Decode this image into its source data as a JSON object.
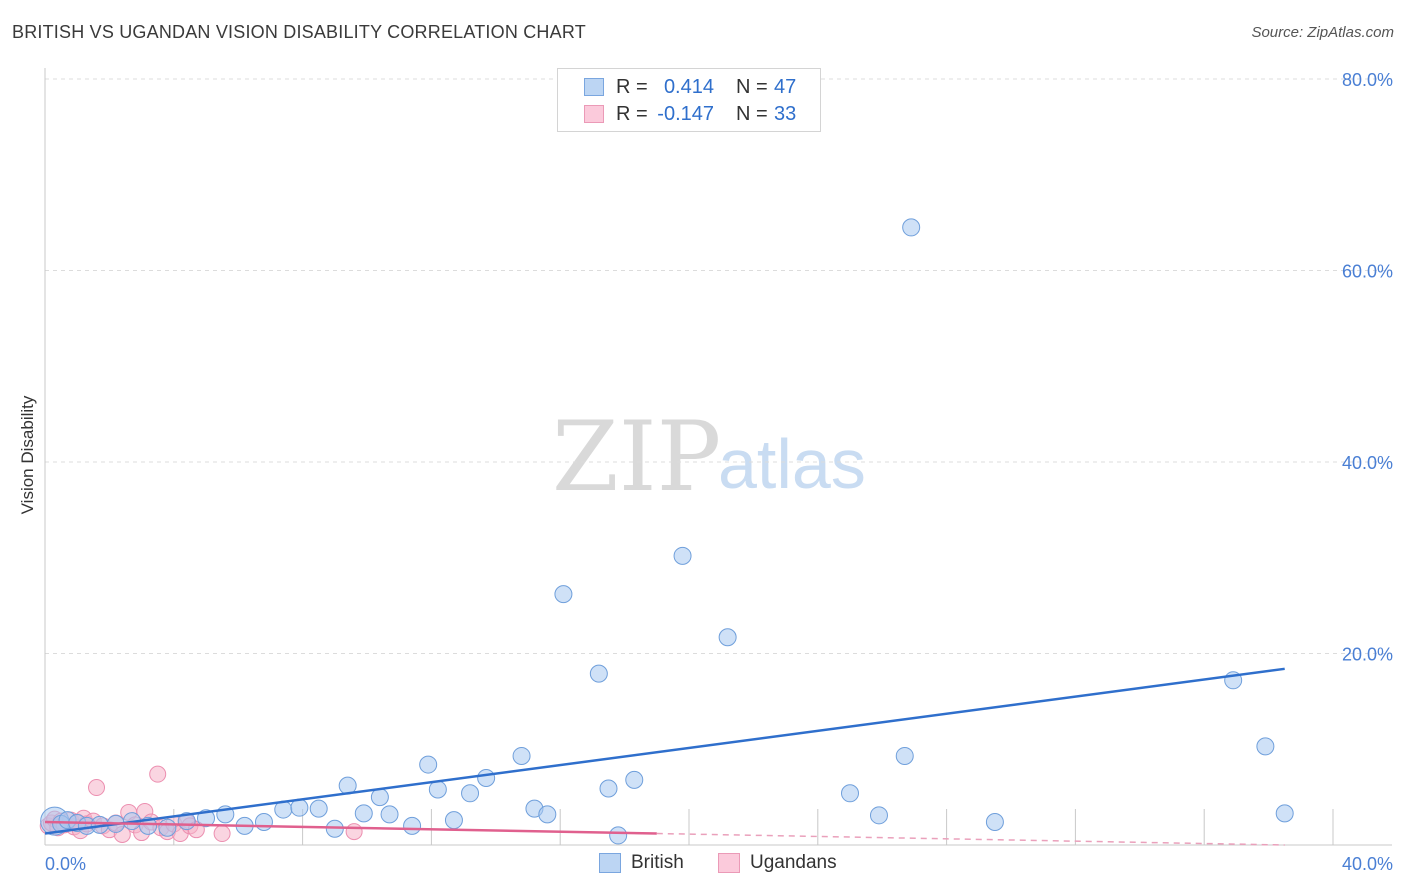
{
  "title": "BRITISH VS UGANDAN VISION DISABILITY CORRELATION CHART",
  "source": "Source: ZipAtlas.com",
  "watermark": {
    "zip": "ZIP",
    "atlas": "atlas"
  },
  "colors": {
    "british": "#a8c8f0",
    "british_line": "#2f6fcc",
    "ugandans": "#f5b3c8",
    "ugandans_line": "#e0608e"
  },
  "legend": {
    "r_label": "R =",
    "n_label": "N =",
    "british": {
      "r": "0.414",
      "n": "47"
    },
    "ugandans": {
      "r": "-0.147",
      "n": "33"
    }
  },
  "bottom_legend": {
    "british": "British",
    "ugandans": "Ugandans"
  },
  "chart_data": {
    "type": "scatter",
    "title": "BRITISH VS UGANDAN VISION DISABILITY CORRELATION CHART",
    "xlabel": "",
    "ylabel": "Vision Disability",
    "xlim": [
      0,
      40
    ],
    "ylim": [
      0,
      80
    ],
    "x_tick_labels": [
      "0.0%",
      "40.0%"
    ],
    "y_ticks": [
      20,
      40,
      60,
      80
    ],
    "y_tick_labels": [
      "20.0%",
      "40.0%",
      "60.0%",
      "80.0%"
    ],
    "grid": true,
    "series": [
      {
        "name": "British",
        "r": 0.414,
        "n": 47,
        "trend": {
          "x": [
            0,
            38.5
          ],
          "y": [
            1.2,
            18.4
          ]
        },
        "points": [
          {
            "x": 0.3,
            "y": 2.5,
            "big": true
          },
          {
            "x": 0.5,
            "y": 2.2
          },
          {
            "x": 0.7,
            "y": 2.6
          },
          {
            "x": 1.0,
            "y": 2.3
          },
          {
            "x": 1.3,
            "y": 2.0
          },
          {
            "x": 1.7,
            "y": 2.1
          },
          {
            "x": 2.2,
            "y": 2.2
          },
          {
            "x": 2.7,
            "y": 2.5
          },
          {
            "x": 3.2,
            "y": 2.0
          },
          {
            "x": 3.8,
            "y": 1.8
          },
          {
            "x": 4.4,
            "y": 2.5
          },
          {
            "x": 5.0,
            "y": 2.8
          },
          {
            "x": 5.6,
            "y": 3.2
          },
          {
            "x": 6.2,
            "y": 2.0
          },
          {
            "x": 6.8,
            "y": 2.4
          },
          {
            "x": 7.4,
            "y": 3.7
          },
          {
            "x": 7.9,
            "y": 3.9
          },
          {
            "x": 8.5,
            "y": 3.8
          },
          {
            "x": 9.0,
            "y": 1.7
          },
          {
            "x": 9.4,
            "y": 6.2
          },
          {
            "x": 9.9,
            "y": 3.3
          },
          {
            "x": 10.4,
            "y": 5.0
          },
          {
            "x": 10.7,
            "y": 3.2
          },
          {
            "x": 11.4,
            "y": 2.0
          },
          {
            "x": 11.9,
            "y": 8.4
          },
          {
            "x": 12.2,
            "y": 5.8
          },
          {
            "x": 12.7,
            "y": 2.6
          },
          {
            "x": 13.2,
            "y": 5.4
          },
          {
            "x": 13.7,
            "y": 7.0
          },
          {
            "x": 14.8,
            "y": 9.3
          },
          {
            "x": 15.2,
            "y": 3.8
          },
          {
            "x": 15.6,
            "y": 3.2
          },
          {
            "x": 16.1,
            "y": 26.2
          },
          {
            "x": 17.2,
            "y": 17.9
          },
          {
            "x": 17.5,
            "y": 5.9
          },
          {
            "x": 17.8,
            "y": 1.0
          },
          {
            "x": 18.3,
            "y": 6.8
          },
          {
            "x": 19.8,
            "y": 30.2
          },
          {
            "x": 21.2,
            "y": 21.7
          },
          {
            "x": 25.0,
            "y": 5.4
          },
          {
            "x": 25.9,
            "y": 3.1
          },
          {
            "x": 26.7,
            "y": 9.3
          },
          {
            "x": 26.9,
            "y": 64.5
          },
          {
            "x": 29.5,
            "y": 2.4
          },
          {
            "x": 36.9,
            "y": 17.2
          },
          {
            "x": 37.9,
            "y": 10.3
          },
          {
            "x": 38.5,
            "y": 3.3
          }
        ]
      },
      {
        "name": "Ugandans",
        "r": -0.147,
        "n": 33,
        "trend": {
          "x": [
            0,
            19.0
          ],
          "y": [
            2.4,
            1.2
          ]
        },
        "trend_dashed": {
          "x": [
            19.0,
            38.5
          ],
          "y": [
            1.2,
            0.0
          ]
        },
        "points": [
          {
            "x": 0.1,
            "y": 2.0
          },
          {
            "x": 0.2,
            "y": 2.3
          },
          {
            "x": 0.3,
            "y": 2.7
          },
          {
            "x": 0.4,
            "y": 1.8
          },
          {
            "x": 0.5,
            "y": 2.5
          },
          {
            "x": 0.6,
            "y": 2.1
          },
          {
            "x": 0.8,
            "y": 2.6
          },
          {
            "x": 0.9,
            "y": 1.9
          },
          {
            "x": 1.0,
            "y": 2.4
          },
          {
            "x": 1.1,
            "y": 1.5
          },
          {
            "x": 1.2,
            "y": 2.8
          },
          {
            "x": 1.3,
            "y": 2.2
          },
          {
            "x": 1.5,
            "y": 2.5
          },
          {
            "x": 1.6,
            "y": 6.0
          },
          {
            "x": 1.8,
            "y": 2.0
          },
          {
            "x": 2.0,
            "y": 1.6
          },
          {
            "x": 2.2,
            "y": 2.3
          },
          {
            "x": 2.4,
            "y": 1.1
          },
          {
            "x": 2.6,
            "y": 3.4
          },
          {
            "x": 2.8,
            "y": 2.1
          },
          {
            "x": 3.0,
            "y": 1.3
          },
          {
            "x": 3.1,
            "y": 3.5
          },
          {
            "x": 3.3,
            "y": 2.4
          },
          {
            "x": 3.5,
            "y": 7.4
          },
          {
            "x": 3.6,
            "y": 1.8
          },
          {
            "x": 3.8,
            "y": 1.4
          },
          {
            "x": 4.0,
            "y": 2.2
          },
          {
            "x": 4.2,
            "y": 1.2
          },
          {
            "x": 4.4,
            "y": 2.4
          },
          {
            "x": 4.5,
            "y": 2.0
          },
          {
            "x": 4.7,
            "y": 1.6
          },
          {
            "x": 5.5,
            "y": 1.2
          },
          {
            "x": 9.6,
            "y": 1.4
          }
        ]
      }
    ]
  }
}
